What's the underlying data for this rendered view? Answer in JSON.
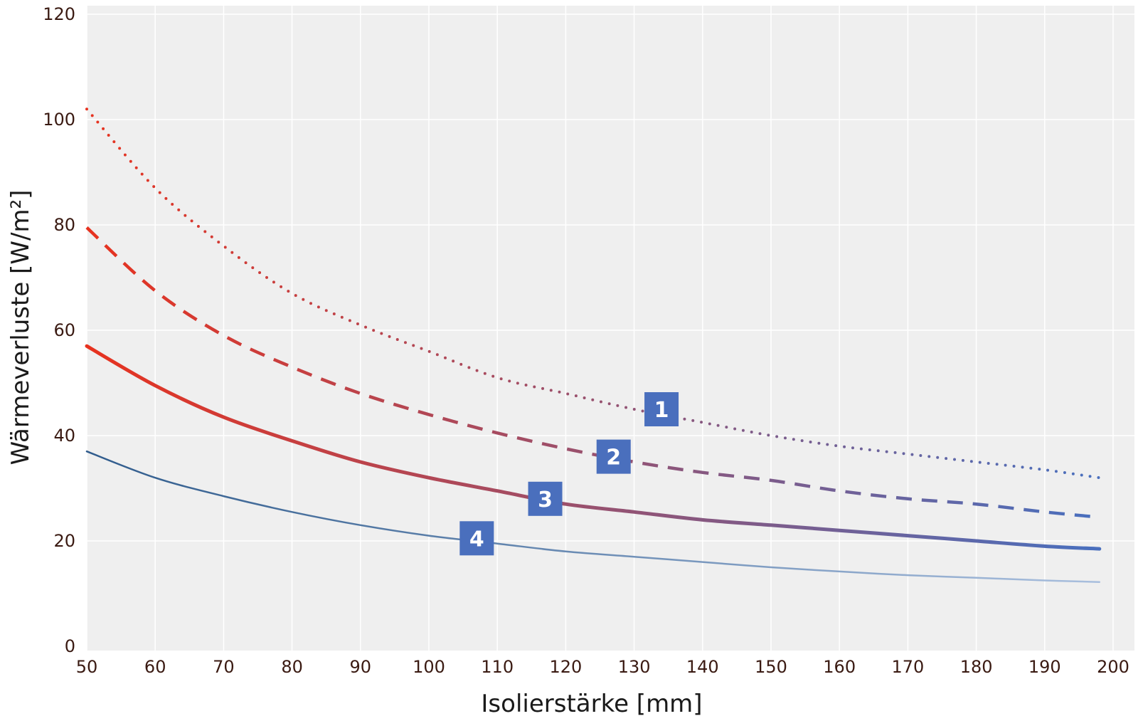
{
  "chart_data": {
    "type": "line",
    "title": "",
    "xlabel": "Isolierstärke [mm]",
    "ylabel": "Wärmeverluste [W/m²]",
    "xlim": [
      50,
      200
    ],
    "ylim": [
      0,
      120
    ],
    "x_ticks": [
      50,
      60,
      70,
      80,
      90,
      100,
      110,
      120,
      130,
      140,
      150,
      160,
      170,
      180,
      190,
      200
    ],
    "y_ticks": [
      0,
      20,
      40,
      60,
      80,
      100,
      120
    ],
    "grid": true,
    "colors": {
      "start": "#e8321e",
      "end": "#4a6fbd",
      "background": "#efefef",
      "grid": "#ffffff",
      "badge": "#4a6fbd"
    },
    "x": [
      50,
      60,
      70,
      80,
      90,
      100,
      110,
      120,
      130,
      140,
      150,
      160,
      170,
      180,
      190,
      198
    ],
    "series": [
      {
        "label": "1",
        "style": "dotted",
        "label_x": 134,
        "label_y": 45,
        "values": [
          102,
          87,
          76,
          67,
          61,
          56,
          51,
          48,
          45,
          42.5,
          40,
          38,
          36.5,
          35,
          33.5,
          32
        ]
      },
      {
        "label": "2",
        "style": "dashed",
        "label_x": 127,
        "label_y": 36,
        "values": [
          79.5,
          67.5,
          59,
          53,
          48,
          44,
          40.5,
          37.5,
          35,
          33,
          31.5,
          29.5,
          28,
          27,
          25.5,
          24.5
        ]
      },
      {
        "label": "3",
        "style": "solid-thick",
        "label_x": 117,
        "label_y": 28,
        "values": [
          57,
          49.5,
          43.5,
          39,
          35,
          32,
          29.5,
          27,
          25.5,
          24,
          23,
          22,
          21,
          20,
          19,
          18.5
        ]
      },
      {
        "label": "4",
        "style": "solid-thin",
        "label_x": 107,
        "label_y": 20.5,
        "values": [
          37,
          32,
          28.5,
          25.5,
          23,
          21,
          19.5,
          18,
          17,
          16,
          15,
          14.2,
          13.5,
          13,
          12.5,
          12.2
        ]
      }
    ]
  }
}
